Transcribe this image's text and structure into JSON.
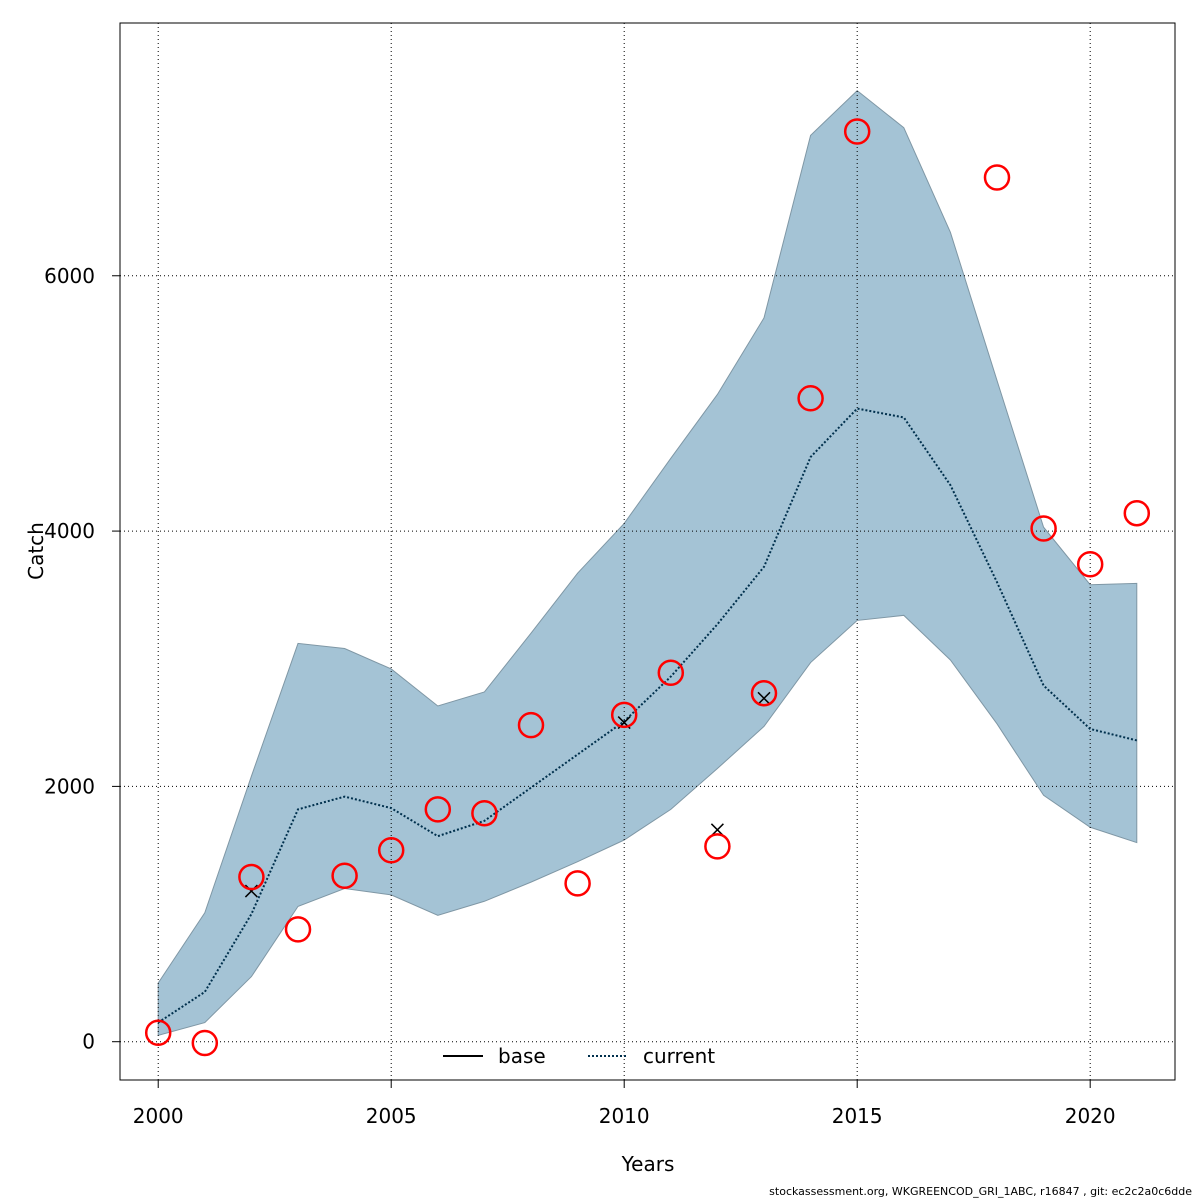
{
  "chart_data": {
    "type": "line",
    "xlabel": "Years",
    "ylabel": "Catch",
    "xlim": [
      1999.18,
      2021.82
    ],
    "ylim": [
      -300,
      7980
    ],
    "x_ticks": [
      2000,
      2005,
      2010,
      2015,
      2020
    ],
    "x_tick_labels": [
      "2000",
      "2005",
      "2010",
      "2015",
      "2020"
    ],
    "y_ticks": [
      0,
      2000,
      4000,
      6000
    ],
    "y_tick_labels": [
      "0",
      "2000",
      "4000",
      "6000"
    ],
    "grid": true,
    "legend_position": "bottom",
    "series": [
      {
        "name": "current",
        "style": "dotted",
        "color": "#00304d",
        "x": [
          2000,
          2001,
          2002,
          2003,
          2004,
          2005,
          2006,
          2007,
          2008,
          2009,
          2010,
          2011,
          2012,
          2013,
          2014,
          2015,
          2016,
          2017,
          2018,
          2019,
          2020,
          2021
        ],
        "y": [
          150,
          390,
          1000,
          1820,
          1920,
          1830,
          1610,
          1730,
          1990,
          2250,
          2510,
          2860,
          3270,
          3720,
          4580,
          4960,
          4890,
          4360,
          3600,
          2790,
          2450,
          2360
        ]
      }
    ],
    "base_series": {
      "name": "base",
      "style": "solid",
      "color": "#000000"
    },
    "confidence_band": {
      "color": "#a4c3d5",
      "x": [
        2000,
        2001,
        2002,
        2003,
        2004,
        2005,
        2006,
        2007,
        2008,
        2009,
        2010,
        2011,
        2012,
        2013,
        2014,
        2015,
        2016,
        2017,
        2018,
        2019,
        2020,
        2021
      ],
      "lower": [
        50,
        150,
        510,
        1060,
        1200,
        1150,
        990,
        1100,
        1250,
        1410,
        1580,
        1820,
        2140,
        2470,
        2970,
        3300,
        3340,
        2990,
        2490,
        1930,
        1680,
        1560
      ],
      "upper": [
        460,
        1010,
        2080,
        3120,
        3080,
        2920,
        2630,
        2740,
        3200,
        3670,
        4060,
        4570,
        5070,
        5670,
        7100,
        7450,
        7160,
        6340,
        5180,
        4030,
        3580,
        3590
      ]
    },
    "observations": {
      "marker": "circle",
      "color": "#ff0000",
      "x": [
        2000,
        2001,
        2002,
        2003,
        2004,
        2005,
        2006,
        2007,
        2008,
        2009,
        2010,
        2011,
        2012,
        2013,
        2014,
        2015,
        2018,
        2019,
        2020,
        2021
      ],
      "y": [
        70,
        -10,
        1290,
        880,
        1300,
        1500,
        1820,
        1790,
        2480,
        1240,
        2560,
        2890,
        1530,
        2730,
        5040,
        7130,
        6770,
        4020,
        3740,
        4140
      ]
    },
    "crosses": {
      "marker": "x",
      "color": "#000000",
      "x": [
        2002,
        2010,
        2012,
        2013
      ],
      "y": [
        1180,
        2500,
        1660,
        2690
      ]
    }
  },
  "legend": {
    "base_label": "base",
    "current_label": "current"
  },
  "footer": "stockassessment.org, WKGREENCOD_GRI_1ABC, r16847 , git: ec2c2a0c6dde"
}
